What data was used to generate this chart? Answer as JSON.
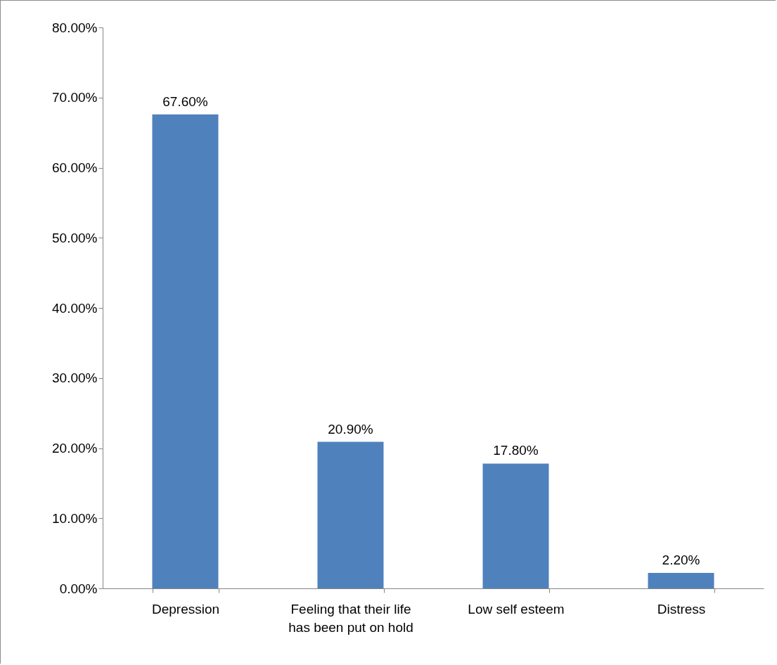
{
  "chart_data": {
    "type": "bar",
    "categories": [
      "Depression",
      "Feeling that their life has been put on hold",
      "Low self esteem",
      "Distress"
    ],
    "values": [
      67.6,
      20.9,
      17.8,
      2.2
    ],
    "color": "#4f81bd",
    "value_labels": [
      "67.60%",
      "20.90%",
      "17.80%",
      "2.20%"
    ],
    "ylim": [
      0,
      80
    ],
    "yticks": [
      {
        "value": 0,
        "label": "0.00%"
      },
      {
        "value": 10,
        "label": "10.00%"
      },
      {
        "value": 20,
        "label": "20.00%"
      },
      {
        "value": 30,
        "label": "30.00%"
      },
      {
        "value": 40,
        "label": "40.00%"
      },
      {
        "value": 50,
        "label": "50.00%"
      },
      {
        "value": 60,
        "label": "60.00%"
      },
      {
        "value": 70,
        "label": "70.00%"
      },
      {
        "value": 80,
        "label": "80.00%"
      }
    ],
    "grid": false
  }
}
